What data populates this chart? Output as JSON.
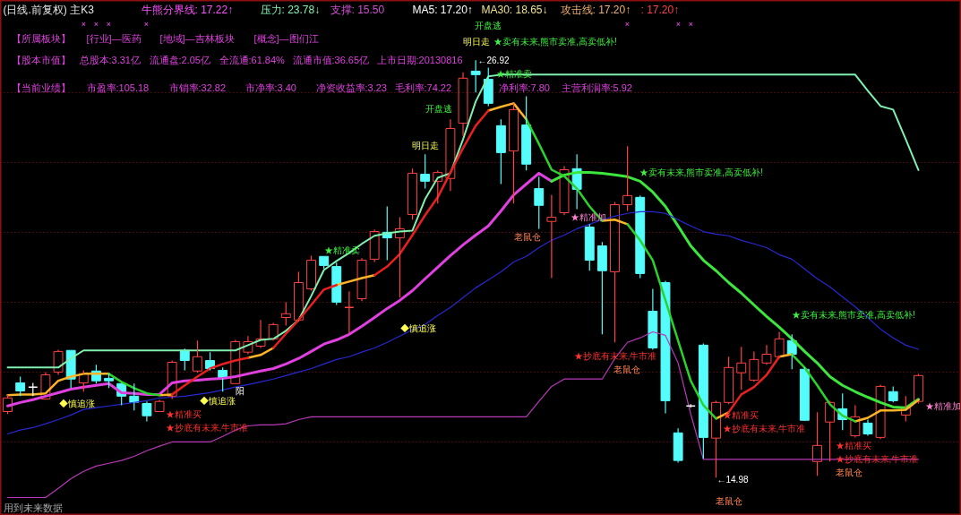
{
  "chart_data": {
    "type": "candlestick",
    "title": "(日线.前复权) 主K3",
    "categories": [
      null,
      null,
      null,
      null,
      null,
      null,
      null,
      null,
      null,
      null,
      null,
      null,
      null,
      null,
      null,
      null,
      null,
      null,
      null,
      null,
      null,
      null,
      null,
      null,
      null,
      null,
      null,
      null,
      null,
      null,
      null,
      null,
      null,
      null,
      null,
      null,
      null,
      null,
      null,
      null,
      null,
      null,
      null,
      null,
      null,
      null,
      null,
      null,
      null,
      null,
      null,
      null,
      null,
      null,
      null,
      null,
      null,
      null,
      null,
      null,
      null,
      null,
      null,
      null,
      null,
      null,
      null,
      null,
      null,
      null,
      null,
      null,
      null
    ],
    "ohlc": [
      [
        16.87,
        17.36,
        16.8,
        17.26
      ],
      [
        17.69,
        17.87,
        17.31,
        17.46
      ],
      [
        17.57,
        17.69,
        17.31,
        17.57
      ],
      [
        17.23,
        18.0,
        17.23,
        17.92
      ],
      [
        18.0,
        18.64,
        17.92,
        18.59
      ],
      [
        18.62,
        18.62,
        17.54,
        17.8
      ],
      [
        17.69,
        18.05,
        17.44,
        17.95
      ],
      [
        18.03,
        18.21,
        17.67,
        17.75
      ],
      [
        17.82,
        17.95,
        17.54,
        17.75
      ],
      [
        17.67,
        17.69,
        17.05,
        17.31
      ],
      [
        17.31,
        17.67,
        16.9,
        17.13
      ],
      [
        17.1,
        17.16,
        16.59,
        16.75
      ],
      [
        16.87,
        17.21,
        16.87,
        17.16
      ],
      [
        17.31,
        18.33,
        17.23,
        18.28
      ],
      [
        18.62,
        18.67,
        18.05,
        18.33
      ],
      [
        18.03,
        18.9,
        17.98,
        18.44
      ],
      [
        18.33,
        18.57,
        18.05,
        18.1
      ],
      [
        18.05,
        18.13,
        17.44,
        17.82
      ],
      [
        17.67,
        18.92,
        17.67,
        18.87
      ],
      [
        18.57,
        19.03,
        18.51,
        18.87
      ],
      [
        18.74,
        19.49,
        18.69,
        18.95
      ],
      [
        18.95,
        19.41,
        18.9,
        19.36
      ],
      [
        19.56,
        20.0,
        19.33,
        19.67
      ],
      [
        19.49,
        20.87,
        19.44,
        20.56
      ],
      [
        20.38,
        21.33,
        20.33,
        21.2
      ],
      [
        21.31,
        21.31,
        20.95,
        21.05
      ],
      [
        21.02,
        21.13,
        19.92,
        20.0
      ],
      [
        19.85,
        20.31,
        19.1,
        19.85
      ],
      [
        20.1,
        21.26,
        20.03,
        21.2
      ],
      [
        21.23,
        22.08,
        21.15,
        22.02
      ],
      [
        22.0,
        22.74,
        21.2,
        21.84
      ],
      [
        21.84,
        22.43,
        20.13,
        22.1
      ],
      [
        22.51,
        23.82,
        22.36,
        23.69
      ],
      [
        23.66,
        24.23,
        23.25,
        23.46
      ],
      [
        23.46,
        23.77,
        22.82,
        23.71
      ],
      [
        23.54,
        25.23,
        23.18,
        24.97
      ],
      [
        25.12,
        26.58,
        24.76,
        26.41
      ],
      [
        26.61,
        26.92,
        26.0,
        26.51
      ],
      [
        26.38,
        26.71,
        25.61,
        25.69
      ],
      [
        25.05,
        25.23,
        23.38,
        24.28
      ],
      [
        24.33,
        25.69,
        22.82,
        25.51
      ],
      [
        25.07,
        25.89,
        23.77,
        23.95
      ],
      [
        23.25,
        23.59,
        22.1,
        22.77
      ],
      [
        22.31,
        23.07,
        20.69,
        22.43
      ],
      [
        22.56,
        23.89,
        22.49,
        23.79
      ],
      [
        23.82,
        24.23,
        22.66,
        23.23
      ],
      [
        22.15,
        22.23,
        20.9,
        21.2
      ],
      [
        21.61,
        21.72,
        19.08,
        20.9
      ],
      [
        20.87,
        22.87,
        18.85,
        22.79
      ],
      [
        22.79,
        24.46,
        22.61,
        23.05
      ],
      [
        23.0,
        23.05,
        20.69,
        20.82
      ],
      [
        19.74,
        20.38,
        18.64,
        18.69
      ],
      [
        20.56,
        20.61,
        16.82,
        17.18
      ],
      [
        16.26,
        16.39,
        15.41,
        15.47
      ],
      [
        17.03,
        17.08,
        16.98,
        17.03
      ],
      [
        18.77,
        18.82,
        15.52,
        16.13
      ],
      [
        16.11,
        17.18,
        14.98,
        17.13
      ],
      [
        17.13,
        18.44,
        17.08,
        18.13
      ],
      [
        17.98,
        18.72,
        17.49,
        18.26
      ],
      [
        17.77,
        18.59,
        17.72,
        18.36
      ],
      [
        18.26,
        18.77,
        18.21,
        18.51
      ],
      [
        18.44,
        19.15,
        18.39,
        18.95
      ],
      [
        18.9,
        19.08,
        18.08,
        18.51
      ],
      [
        18.08,
        18.13,
        16.6,
        16.62
      ],
      [
        15.44,
        16.85,
        15.03,
        15.9
      ],
      [
        16.57,
        17.18,
        15.44,
        17.13
      ],
      [
        16.95,
        17.39,
        16.34,
        16.64
      ],
      [
        16.18,
        17.05,
        16.13,
        16.72
      ],
      [
        16.54,
        16.64,
        16.18,
        16.23
      ],
      [
        16.13,
        17.64,
        16.08,
        17.59
      ],
      [
        17.44,
        17.59,
        17.13,
        17.18
      ],
      [
        16.77,
        17.31,
        16.59,
        16.98
      ],
      [
        17.16,
        17.95,
        17.1,
        17.9
      ]
    ],
    "colors": [
      "#ff4242",
      "#54fcfc",
      "#ffffff",
      "#ff4242",
      "#ff4242",
      "#54fcfc",
      "#ff4242",
      "#54fcfc",
      "#54fcfc",
      "#54fcfc",
      "#54fcfc",
      "#54fcfc",
      "#ff4242",
      "#ff4242",
      "#54fcfc",
      "#ff4242",
      "#54fcfc",
      "#54fcfc",
      "#ff4242",
      "#ff4242",
      "#ff4242",
      "#ff4242",
      "#ff4242",
      "#ff4242",
      "#ff4242",
      "#54fcfc",
      "#54fcfc",
      "#ff4242",
      "#ff4242",
      "#ff4242",
      "#54fcfc",
      "#ff4242",
      "#ff4242",
      "#54fcfc",
      "#ff4242",
      "#ff4242",
      "#ff4242",
      "#54fcfc",
      "#54fcfc",
      "#54fcfc",
      "#ff4242",
      "#54fcfc",
      "#54fcfc",
      "#ff4242",
      "#ff4242",
      "#54fcfc",
      "#54fcfc",
      "#54fcfc",
      "#ff4242",
      "#ff4242",
      "#54fcfc",
      "#54fcfc",
      "#54fcfc",
      "#54fcfc",
      "#ffffff",
      "#54fcfc",
      "#ff4242",
      "#ff4242",
      "#ff4242",
      "#ff4242",
      "#ff4242",
      "#ff4242",
      "#54fcfc",
      "#54fcfc",
      "#ff4242",
      "#ff4242",
      "#54fcfc",
      "#ff4242",
      "#54fcfc",
      "#ff4242",
      "#54fcfc",
      "#ff4242",
      "#ff4242"
    ],
    "series": [
      {
        "type": "line",
        "color": "#80f0b0",
        "values": [
          18.13,
          18.13,
          18.13,
          18.13,
          18.13,
          18.39,
          18.62,
          18.62,
          18.62,
          18.62,
          18.62,
          18.62,
          18.62,
          18.62,
          18.62,
          18.62,
          18.62,
          18.62,
          18.62,
          18.77,
          18.92,
          18.95,
          19.18,
          19.49,
          20.18,
          20.92,
          21.18,
          21.41,
          21.67,
          21.9,
          21.97,
          22.02,
          22.05,
          22.95,
          23.56,
          23.69,
          24.66,
          25.74,
          26.46,
          26.51,
          26.51,
          26.51,
          26.51,
          26.51,
          26.51,
          26.51,
          26.51,
          26.51,
          26.51,
          26.51,
          26.51,
          26.51,
          26.51,
          26.51,
          26.51,
          26.51,
          26.51,
          26.51,
          26.51,
          26.51,
          26.51,
          26.51,
          26.51,
          26.51,
          26.51,
          26.51,
          26.51,
          26.51,
          26.05,
          25.61,
          25.51,
          24.66,
          23.78
        ]
      },
      {
        "type": "line",
        "color": "#e040e0",
        "values": [
          17.03,
          17.13,
          17.21,
          17.31,
          17.41,
          17.51,
          17.57,
          17.62,
          17.67,
          17.41,
          17.39,
          17.36,
          17.36,
          17.69,
          17.75,
          17.77,
          17.8,
          17.82,
          17.87,
          17.95,
          18.03,
          18.1,
          18.23,
          18.39,
          18.59,
          18.8,
          18.92,
          19.08,
          19.31,
          19.56,
          19.82,
          20.05,
          20.33,
          20.67,
          21.0,
          21.33,
          21.64,
          21.92,
          22.18,
          22.61,
          23.07,
          23.38,
          23.69,
          23.46,
          null,
          null,
          null,
          null,
          null,
          null,
          null,
          null,
          null,
          null,
          null,
          null,
          null,
          null,
          null,
          null,
          null,
          null,
          null,
          null,
          null,
          null,
          null,
          null,
          null,
          null,
          null,
          null,
          null
        ]
      },
      {
        "type": "line",
        "color": "#3ce63c",
        "values": [
          null,
          null,
          null,
          null,
          null,
          null,
          null,
          null,
          null,
          null,
          null,
          null,
          null,
          null,
          null,
          null,
          null,
          null,
          null,
          null,
          null,
          null,
          null,
          null,
          null,
          null,
          null,
          null,
          null,
          null,
          null,
          null,
          null,
          null,
          null,
          null,
          null,
          null,
          null,
          null,
          null,
          null,
          null,
          23.46,
          23.64,
          23.71,
          23.71,
          23.69,
          23.64,
          23.59,
          23.46,
          23.15,
          22.74,
          22.18,
          21.61,
          21.2,
          20.9,
          20.56,
          20.26,
          19.92,
          19.59,
          19.28,
          18.95,
          18.59,
          18.26,
          17.87,
          17.62,
          17.44,
          17.28,
          17.13,
          17.0,
          16.98,
          17.22
        ]
      },
      {
        "type": "line",
        "color": "#2828d2",
        "values": [
          16.23,
          16.34,
          16.41,
          16.52,
          16.64,
          16.77,
          16.93,
          16.98,
          17.03,
          17.08,
          17.13,
          17.18,
          17.26,
          17.28,
          17.31,
          17.36,
          17.41,
          17.49,
          17.57,
          17.64,
          17.72,
          17.8,
          17.9,
          18.0,
          18.1,
          18.23,
          18.36,
          18.44,
          18.57,
          18.69,
          18.85,
          19.03,
          19.21,
          19.36,
          19.62,
          19.85,
          20.13,
          20.41,
          20.64,
          20.87,
          21.15,
          21.31,
          21.56,
          21.77,
          21.92,
          22.1,
          22.23,
          22.36,
          22.46,
          22.54,
          22.59,
          22.59,
          22.54,
          22.36,
          22.18,
          22.02,
          21.95,
          21.9,
          21.77,
          21.67,
          21.56,
          21.36,
          21.23,
          20.95,
          20.67,
          20.44,
          20.15,
          19.87,
          19.56,
          19.23,
          18.98,
          18.77,
          18.65
        ]
      },
      {
        "type": "line",
        "color": "#b838b8",
        "values": [
          14.41,
          14.41,
          14.41,
          14.41,
          14.67,
          14.95,
          15.16,
          15.31,
          15.39,
          15.47,
          15.59,
          15.75,
          15.88,
          16.0,
          16.0,
          16.0,
          16.0,
          16.16,
          16.34,
          16.46,
          16.49,
          16.49,
          16.52,
          16.64,
          16.72,
          16.72,
          16.72,
          16.72,
          16.72,
          16.72,
          16.72,
          16.72,
          16.72,
          16.72,
          16.72,
          16.72,
          16.72,
          16.72,
          16.72,
          16.72,
          16.72,
          16.72,
          17.16,
          17.59,
          17.8,
          17.8,
          17.8,
          17.8,
          18.39,
          18.85,
          18.98,
          19.15,
          19.05,
          18.26,
          16.8,
          15.5,
          15.5,
          15.5,
          15.5,
          15.5,
          15.5,
          15.5,
          15.5,
          15.5,
          15.5,
          15.5,
          15.5,
          15.5,
          15.5,
          15.5,
          15.5,
          15.5,
          15.5
        ]
      },
      {
        "type": "line",
        "color": "#ffb428",
        "values": [
          17.34,
          17.36,
          17.36,
          17.39,
          17.75,
          17.87,
          17.95,
          17.95,
          17.95,
          null,
          null,
          null,
          17.34,
          17.36,
          null,
          null,
          null,
          null,
          null,
          18.41,
          18.49,
          18.69,
          null,
          null,
          null,
          null,
          20.49,
          20.59,
          20.69,
          20.77,
          null,
          null,
          null,
          null,
          null,
          null,
          null,
          null,
          25.48,
          25.59,
          25.69,
          25.23,
          null,
          null,
          null,
          null,
          null,
          22.33,
          22.36,
          22.23,
          null,
          null,
          null,
          null,
          null,
          null,
          16.67,
          16.85,
          null,
          null,
          null,
          18.44,
          18.51,
          null,
          null,
          null,
          null,
          16.59,
          16.69,
          16.9,
          16.9,
          16.92,
          17.2
        ]
      },
      {
        "type": "line",
        "color": "#2cd22c",
        "values": [
          null,
          null,
          null,
          null,
          null,
          null,
          null,
          null,
          17.95,
          17.72,
          17.54,
          17.39,
          17.34,
          null,
          null,
          null,
          null,
          null,
          null,
          null,
          null,
          null,
          null,
          null,
          null,
          null,
          null,
          null,
          null,
          null,
          null,
          null,
          null,
          null,
          null,
          null,
          null,
          null,
          null,
          null,
          null,
          25.23,
          24.53,
          23.79,
          23.61,
          23.25,
          22.74,
          22.33,
          null,
          22.23,
          21.77,
          21.2,
          20.05,
          18.9,
          17.75,
          17.05,
          16.67,
          null,
          null,
          null,
          null,
          null,
          18.51,
          18.13,
          17.62,
          17.08,
          16.75,
          16.59,
          null,
          null,
          null,
          null,
          null
        ]
      },
      {
        "type": "line",
        "color": "#e82020",
        "values": [
          null,
          null,
          null,
          null,
          null,
          null,
          null,
          null,
          null,
          null,
          null,
          null,
          null,
          17.36,
          17.62,
          17.87,
          18.1,
          18.23,
          18.33,
          18.41,
          null,
          18.69,
          19.1,
          19.49,
          19.92,
          20.36,
          20.49,
          null,
          null,
          20.77,
          21.02,
          21.38,
          21.92,
          22.49,
          23.0,
          23.71,
          24.41,
          25.05,
          25.48,
          null,
          null,
          null,
          null,
          null,
          null,
          null,
          null,
          null,
          null,
          null,
          null,
          null,
          null,
          null,
          null,
          null,
          null,
          16.85,
          17.36,
          17.57,
          17.92,
          18.44,
          null,
          null,
          null,
          null,
          null,
          null,
          null,
          null,
          null,
          null,
          null
        ]
      }
    ],
    "yticks": [
      {
        "value": 16,
        "label": null
      },
      {
        "value": 18,
        "label": null
      },
      {
        "value": 20,
        "label": null
      },
      {
        "value": 22,
        "label": null
      },
      {
        "value": 24,
        "label": null
      },
      {
        "value": 26,
        "label": null
      }
    ],
    "grid": "y",
    "tick_labels": false,
    "annotations": [
      "牛熊分界线: 17.22↑",
      "压力: 23.78↓",
      "支撑: 15.50",
      "MA5: 17.20↑",
      "MA30: 18.65↓",
      "攻击线: 17.20↑",
      ": 17.20↑",
      "【所属板块】",
      "[行业]—医药",
      "[地域]—吉林板块",
      "[概念]—图们江",
      "【股本市值】",
      "总股本:3.31亿",
      "流通盘:2.05亿",
      "全流通:61.84%",
      "流通市值:36.65亿",
      "上市日期:20130816",
      "【当前业绩】",
      "市盈率:105.18",
      "市销率:32.82",
      "市净率:3.40",
      "净资收益率:3.23",
      "毛利率:74.22",
      "净利率:7.80",
      "主营利润率:5.92",
      "用到未来数据",
      "开盘逃",
      "明日走",
      "★卖有未来,熊市卖准,高卖低补!",
      "←26.92",
      "★精准卖",
      "开盘逃",
      "明日走",
      "★卖有未来,熊市卖准,高卖低补!",
      "★精准加",
      "老鼠仓",
      "★精准卖",
      "★卖有未来,熊市卖准,高卖低补!",
      "◆慎追涨",
      "★抄底有未来,牛市准",
      "老鼠仓",
      "阳",
      "◆慎追涨",
      "◆慎追涨",
      "★精准加",
      "★精准买",
      "★精准买",
      "★抄底有未来,牛市准",
      "★抄底有未来,牛市准",
      "★精准买",
      "★抄底有未来,牛市准",
      "老鼠仓",
      "←14.98",
      "老鼠仓",
      "×",
      "×",
      "×",
      "×",
      "×",
      "×",
      "×"
    ]
  }
}
